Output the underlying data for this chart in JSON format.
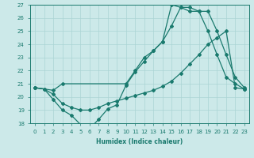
{
  "xlabel": "Humidex (Indice chaleur)",
  "xlim": [
    -0.5,
    23.5
  ],
  "ylim": [
    18,
    27
  ],
  "yticks": [
    18,
    19,
    20,
    21,
    22,
    23,
    24,
    25,
    26,
    27
  ],
  "xticks": [
    0,
    1,
    2,
    3,
    4,
    5,
    6,
    7,
    8,
    9,
    10,
    11,
    12,
    13,
    14,
    15,
    16,
    17,
    18,
    19,
    20,
    21,
    22,
    23
  ],
  "background_color": "#cce9e9",
  "grid_color": "#aad4d4",
  "line_color": "#1a7a6e",
  "line1_x": [
    0,
    1,
    2,
    3,
    4,
    5,
    6,
    7,
    8,
    9,
    10,
    11,
    12,
    13,
    14,
    15,
    16,
    17,
    18,
    19,
    20,
    21,
    22,
    23
  ],
  "line1_y": [
    20.7,
    20.6,
    19.8,
    19.0,
    18.6,
    17.9,
    17.6,
    18.3,
    19.1,
    19.4,
    20.9,
    21.9,
    22.7,
    23.5,
    24.2,
    27.0,
    26.8,
    26.5,
    26.5,
    25.0,
    23.2,
    21.5,
    21.0,
    20.6
  ],
  "line2_x": [
    0,
    1,
    2,
    3,
    4,
    5,
    6,
    7,
    8,
    9,
    10,
    11,
    12,
    13,
    14,
    15,
    16,
    17,
    18,
    19,
    20,
    21,
    22,
    23
  ],
  "line2_y": [
    20.7,
    20.6,
    20.2,
    19.5,
    19.2,
    19.0,
    19.0,
    19.2,
    19.5,
    19.7,
    19.9,
    20.1,
    20.3,
    20.5,
    20.8,
    21.2,
    21.8,
    22.5,
    23.2,
    24.0,
    24.5,
    25.0,
    20.7,
    20.6
  ],
  "line3_x": [
    0,
    2,
    3,
    10,
    11,
    12,
    13,
    14,
    15,
    16,
    17,
    18,
    19,
    20,
    21,
    22,
    23
  ],
  "line3_y": [
    20.7,
    20.5,
    21.0,
    21.0,
    22.0,
    23.0,
    23.5,
    24.2,
    25.4,
    26.8,
    26.8,
    26.5,
    26.5,
    25.0,
    23.2,
    21.5,
    20.7
  ]
}
